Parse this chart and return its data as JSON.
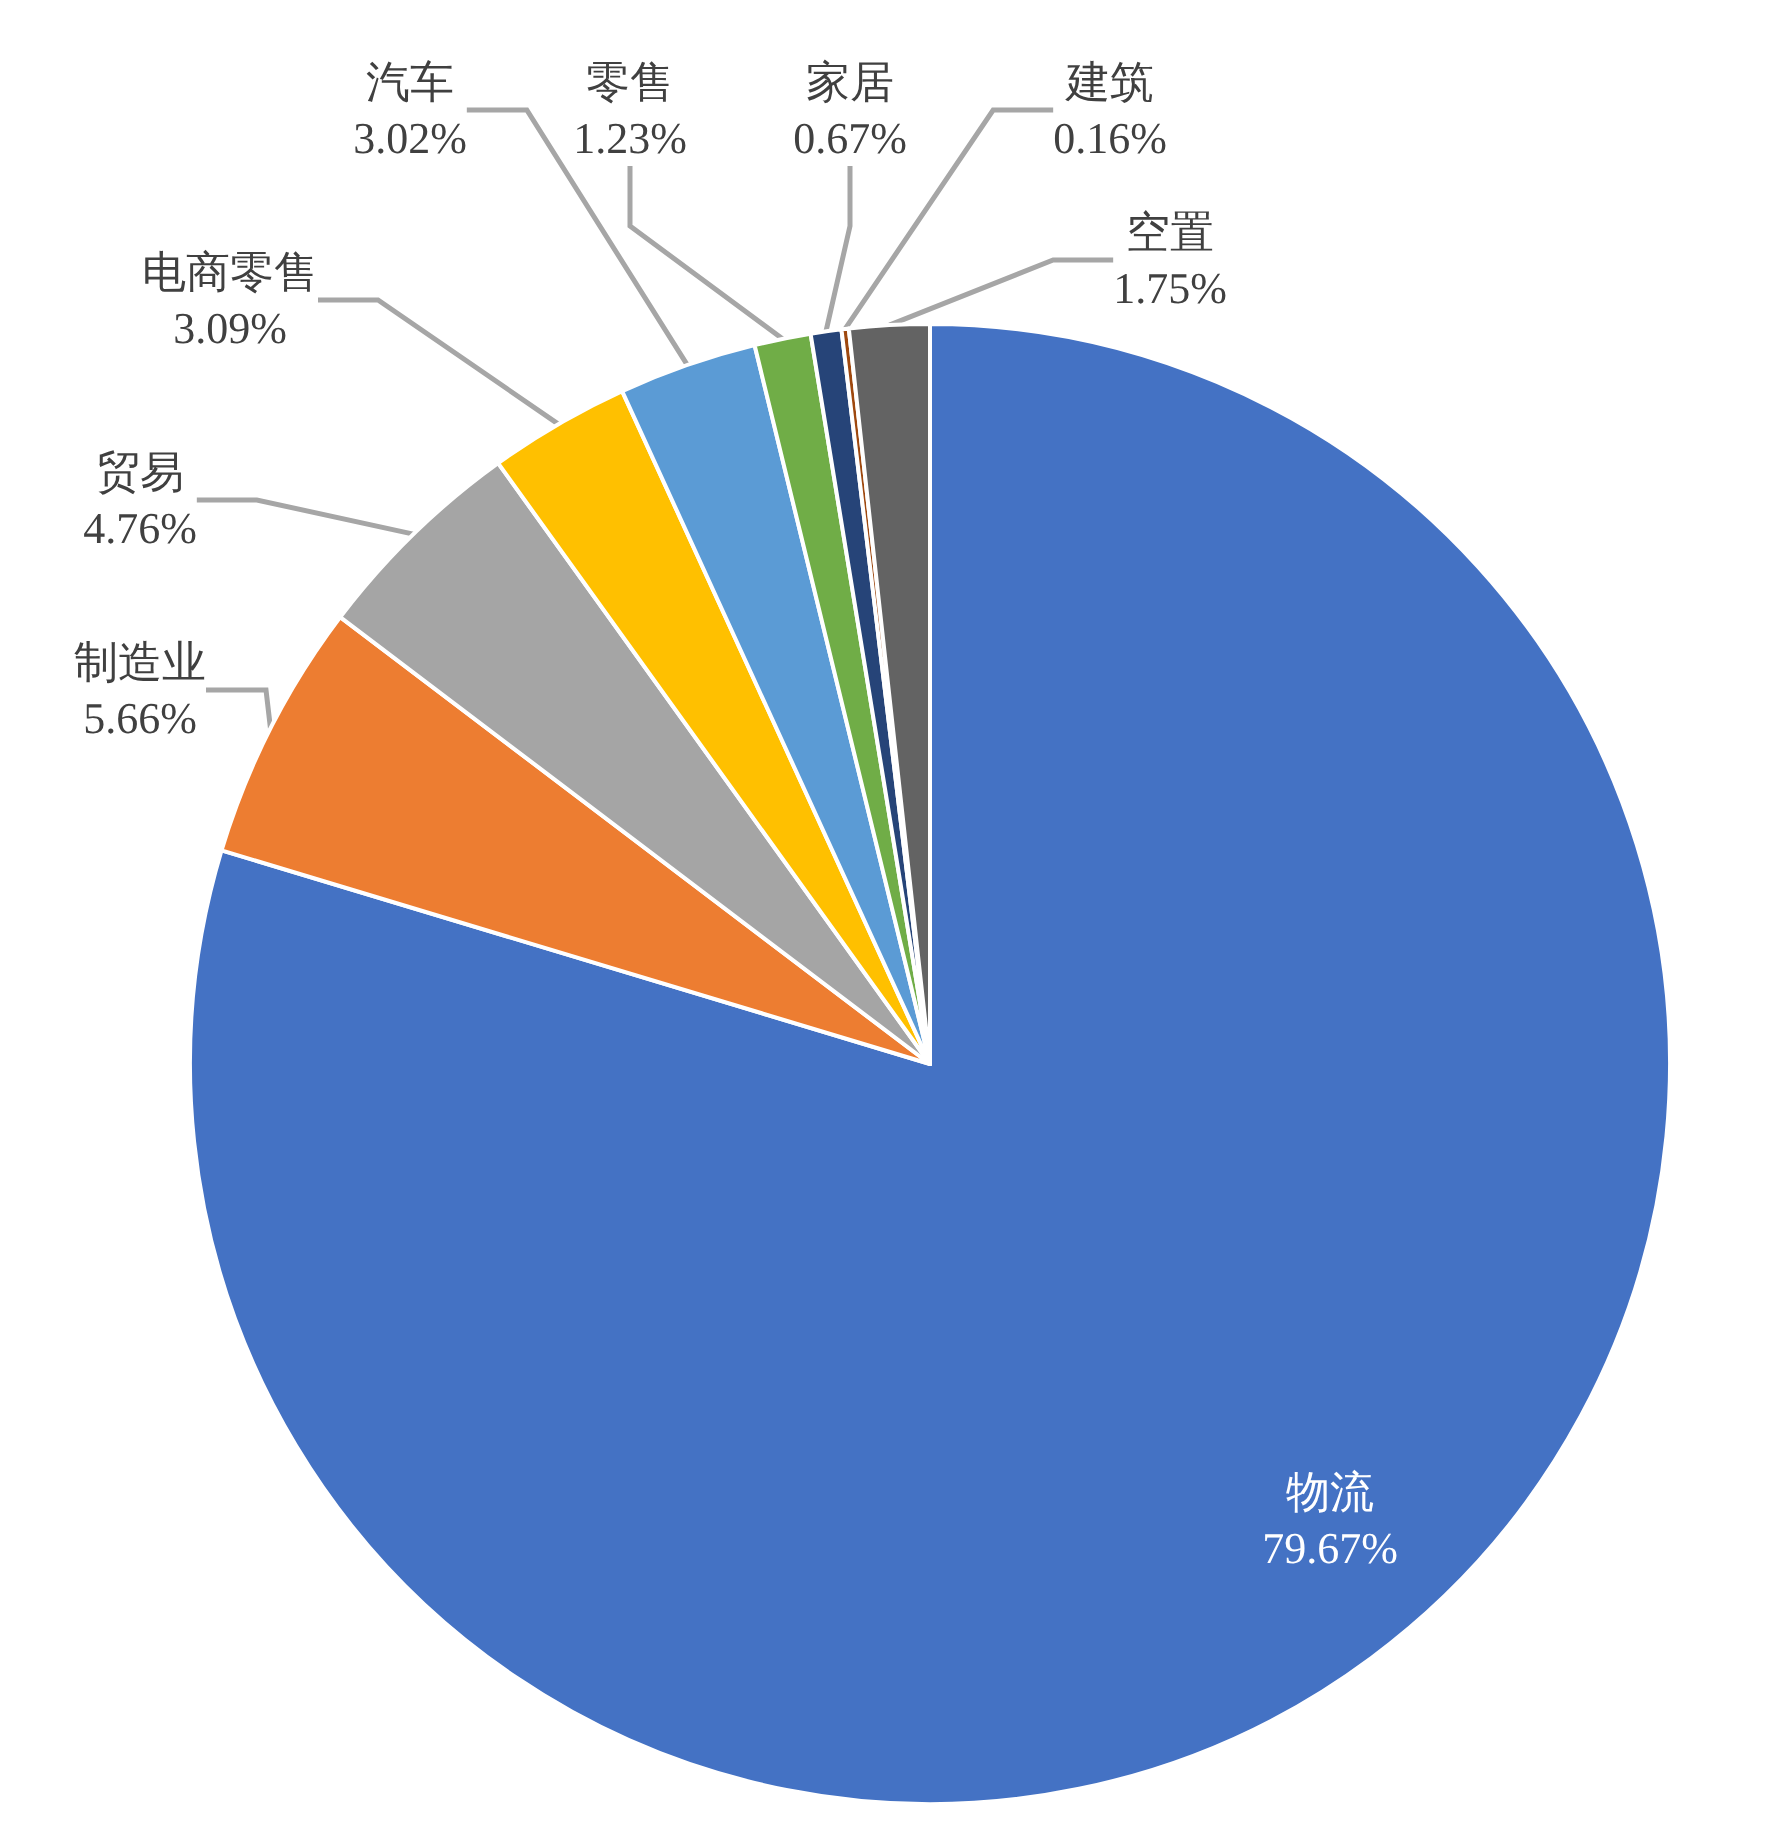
{
  "chart_data": {
    "type": "pie",
    "categories": [
      "物流",
      "制造业",
      "贸易",
      "电商零售",
      "汽车",
      "零售",
      "家居",
      "建筑",
      "空置"
    ],
    "values": [
      79.67,
      5.66,
      4.76,
      3.09,
      3.02,
      1.23,
      0.67,
      0.16,
      1.75
    ],
    "value_labels": [
      "79.67%",
      "5.66%",
      "4.76%",
      "3.09%",
      "3.02%",
      "1.23%",
      "0.67%",
      "0.16%",
      "1.75%"
    ],
    "colors": [
      "#4472c4",
      "#ed7d31",
      "#a5a5a5",
      "#ffc000",
      "#5b9bd5",
      "#70ad47",
      "#264478",
      "#9e480e",
      "#636363"
    ]
  }
}
